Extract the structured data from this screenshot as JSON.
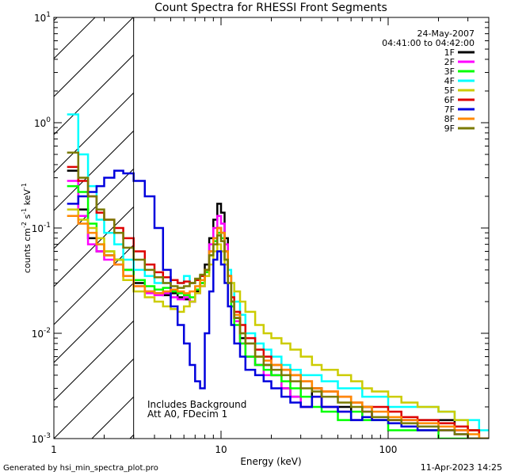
{
  "chart_data": {
    "type": "line",
    "title": "Count Spectra for RHESSI Front Segments",
    "xlabel": "Energy (keV)",
    "ylabel": "counts cm-2 s-1 keV-1",
    "ylabel_base": "counts cm",
    "ylabel_exp1": "-2",
    "ylabel_mid": " s",
    "ylabel_exp2": "-1",
    "ylabel_mid2": " keV",
    "ylabel_exp3": "-1",
    "xscale": "log",
    "yscale": "log",
    "xlim": [
      1,
      400
    ],
    "ylim": [
      0.001,
      10
    ],
    "x_ticks": [
      {
        "value": 1,
        "label": "1"
      },
      {
        "value": 10,
        "label": "10"
      },
      {
        "value": 100,
        "label": "100"
      }
    ],
    "y_ticks": [
      {
        "value": 10,
        "base": "10",
        "exp": "1"
      },
      {
        "value": 1,
        "base": "10",
        "exp": "0"
      },
      {
        "value": 0.1,
        "base": "10",
        "exp": "-1"
      },
      {
        "value": 0.01,
        "base": "10",
        "exp": "-2"
      },
      {
        "value": 0.001,
        "base": "10",
        "exp": "-3"
      }
    ],
    "date": "24-May-2007",
    "time_range": "04:41:00 to 04:42:00",
    "annotation_lines": [
      "Includes Background",
      "Att A0, FDecim 1"
    ],
    "hatched_region_max_energy": 3,
    "footer_left": "Generated by hsi_min_spectra_plot.pro",
    "footer_right": "11-Apr-2023 14:25",
    "series": [
      {
        "name": "1F",
        "color": "#000000",
        "type": "front",
        "x": [
          1.2,
          1.4,
          1.6,
          1.8,
          2.0,
          2.3,
          2.6,
          3.0,
          3.5,
          4.0,
          4.5,
          5.0,
          5.5,
          6.0,
          6.5,
          7.0,
          7.5,
          8.0,
          8.5,
          9.0,
          9.5,
          10.0,
          10.5,
          11.0,
          11.5,
          12.0,
          13.0,
          14.0,
          16.0,
          18.0,
          20.0,
          23.0,
          26.0,
          30.0,
          35.0,
          40.0,
          50.0,
          60.0,
          70.0,
          80.0,
          100.0,
          120.0,
          150.0,
          200.0,
          250.0,
          300.0,
          350.0
        ],
        "y": [
          0.35,
          0.15,
          0.08,
          0.06,
          0.055,
          0.05,
          0.04,
          0.03,
          0.025,
          0.024,
          0.023,
          0.024,
          0.022,
          0.021,
          0.02,
          0.025,
          0.03,
          0.045,
          0.08,
          0.12,
          0.17,
          0.14,
          0.08,
          0.035,
          0.02,
          0.014,
          0.009,
          0.006,
          0.005,
          0.005,
          0.004,
          0.003,
          0.0025,
          0.002,
          0.003,
          0.002,
          0.002,
          0.0015,
          0.002,
          0.0015,
          0.0015,
          0.0015,
          0.0015,
          0.0015,
          0.0012,
          0.0012,
          0.001
        ]
      },
      {
        "name": "2F",
        "color": "#ff00ff",
        "type": "front",
        "x": [
          1.2,
          1.4,
          1.6,
          1.8,
          2.0,
          2.3,
          2.6,
          3.0,
          3.5,
          4.0,
          4.5,
          5.0,
          5.5,
          6.0,
          6.5,
          7.0,
          7.5,
          8.0,
          8.5,
          9.0,
          9.5,
          10.0,
          10.5,
          11.0,
          11.5,
          12.0,
          13.0,
          14.0,
          16.0,
          18.0,
          20.0,
          23.0,
          26.0,
          30.0,
          35.0,
          40.0,
          50.0,
          60.0,
          70.0,
          80.0,
          100.0,
          120.0,
          150.0,
          200.0,
          250.0,
          300.0,
          350.0
        ],
        "y": [
          0.28,
          0.13,
          0.07,
          0.06,
          0.05,
          0.045,
          0.035,
          0.028,
          0.024,
          0.023,
          0.024,
          0.022,
          0.021,
          0.022,
          0.02,
          0.024,
          0.028,
          0.04,
          0.07,
          0.1,
          0.13,
          0.11,
          0.07,
          0.03,
          0.018,
          0.013,
          0.008,
          0.006,
          0.005,
          0.004,
          0.004,
          0.003,
          0.0025,
          0.002,
          0.0025,
          0.002,
          0.0018,
          0.0015,
          0.0018,
          0.0015,
          0.0015,
          0.0015,
          0.0012,
          0.0012,
          0.0012,
          0.001,
          0.001
        ]
      },
      {
        "name": "3F",
        "color": "#00ff00",
        "type": "front",
        "x": [
          1.2,
          1.4,
          1.6,
          1.8,
          2.0,
          2.3,
          2.6,
          3.0,
          3.5,
          4.0,
          4.5,
          5.0,
          5.5,
          6.0,
          6.5,
          7.0,
          7.5,
          8.0,
          8.5,
          9.0,
          9.5,
          10.0,
          10.5,
          11.0,
          11.5,
          12.0,
          13.0,
          14.0,
          16.0,
          18.0,
          20.0,
          23.0,
          26.0,
          30.0,
          35.0,
          40.0,
          50.0,
          60.0,
          70.0,
          80.0,
          100.0,
          120.0,
          150.0,
          200.0,
          250.0,
          300.0,
          350.0
        ],
        "y": [
          0.25,
          0.22,
          0.11,
          0.07,
          0.06,
          0.05,
          0.04,
          0.032,
          0.028,
          0.026,
          0.027,
          0.025,
          0.024,
          0.023,
          0.022,
          0.026,
          0.03,
          0.038,
          0.055,
          0.075,
          0.09,
          0.08,
          0.05,
          0.03,
          0.018,
          0.012,
          0.008,
          0.006,
          0.005,
          0.0045,
          0.004,
          0.0035,
          0.003,
          0.0025,
          0.002,
          0.0018,
          0.0015,
          0.0018,
          0.0015,
          0.0015,
          0.0012,
          0.0012,
          0.0012,
          0.001,
          0.001,
          0.001,
          0.001
        ]
      },
      {
        "name": "4F",
        "color": "#00ffff",
        "type": "front",
        "x": [
          1.2,
          1.4,
          1.6,
          1.8,
          2.0,
          2.3,
          2.6,
          3.0,
          3.5,
          4.0,
          4.5,
          5.0,
          5.5,
          6.0,
          6.5,
          7.0,
          7.5,
          8.0,
          8.5,
          9.0,
          9.5,
          10.0,
          10.5,
          11.0,
          11.5,
          12.0,
          13.0,
          14.0,
          16.0,
          18.0,
          20.0,
          23.0,
          26.0,
          30.0,
          35.0,
          40.0,
          50.0,
          60.0,
          70.0,
          80.0,
          100.0,
          120.0,
          150.0,
          200.0,
          250.0,
          300.0,
          350.0
        ],
        "y": [
          1.2,
          0.5,
          0.25,
          0.12,
          0.09,
          0.07,
          0.05,
          0.04,
          0.035,
          0.03,
          0.03,
          0.032,
          0.03,
          0.035,
          0.03,
          0.032,
          0.035,
          0.04,
          0.06,
          0.08,
          0.1,
          0.09,
          0.06,
          0.04,
          0.03,
          0.02,
          0.015,
          0.01,
          0.008,
          0.007,
          0.006,
          0.005,
          0.0045,
          0.004,
          0.004,
          0.0035,
          0.003,
          0.003,
          0.0025,
          0.0025,
          0.002,
          0.002,
          0.002,
          0.0018,
          0.0015,
          0.0015,
          0.0012
        ]
      },
      {
        "name": "5F",
        "color": "#cccc00",
        "type": "front",
        "x": [
          1.2,
          1.4,
          1.6,
          1.8,
          2.0,
          2.3,
          2.6,
          3.0,
          3.5,
          4.0,
          4.5,
          5.0,
          5.5,
          6.0,
          6.5,
          7.0,
          7.5,
          8.0,
          8.5,
          9.0,
          9.5,
          10.0,
          10.5,
          11.0,
          11.5,
          12.0,
          13.0,
          14.0,
          16.0,
          18.0,
          20.0,
          23.0,
          26.0,
          30.0,
          35.0,
          40.0,
          50.0,
          60.0,
          70.0,
          80.0,
          100.0,
          120.0,
          150.0,
          200.0,
          250.0,
          300.0,
          350.0
        ],
        "y": [
          0.15,
          0.12,
          0.1,
          0.08,
          0.06,
          0.05,
          0.032,
          0.025,
          0.022,
          0.02,
          0.018,
          0.017,
          0.016,
          0.018,
          0.02,
          0.024,
          0.028,
          0.035,
          0.045,
          0.06,
          0.07,
          0.06,
          0.045,
          0.035,
          0.03,
          0.025,
          0.02,
          0.016,
          0.012,
          0.01,
          0.009,
          0.008,
          0.007,
          0.006,
          0.005,
          0.0045,
          0.004,
          0.0035,
          0.003,
          0.0028,
          0.0025,
          0.0022,
          0.002,
          0.0018,
          0.0015,
          0.0012,
          0.001
        ]
      },
      {
        "name": "6F",
        "color": "#dd0000",
        "type": "front",
        "x": [
          1.2,
          1.4,
          1.6,
          1.8,
          2.0,
          2.3,
          2.6,
          3.0,
          3.5,
          4.0,
          4.5,
          5.0,
          5.5,
          6.0,
          6.5,
          7.0,
          7.5,
          8.0,
          8.5,
          9.0,
          9.5,
          10.0,
          10.5,
          11.0,
          11.5,
          12.0,
          13.0,
          14.0,
          16.0,
          18.0,
          20.0,
          23.0,
          26.0,
          30.0,
          35.0,
          40.0,
          50.0,
          60.0,
          70.0,
          80.0,
          100.0,
          120.0,
          150.0,
          200.0,
          250.0,
          300.0,
          350.0
        ],
        "y": [
          0.38,
          0.28,
          0.2,
          0.14,
          0.12,
          0.1,
          0.08,
          0.06,
          0.045,
          0.038,
          0.034,
          0.032,
          0.03,
          0.031,
          0.03,
          0.032,
          0.035,
          0.04,
          0.06,
          0.08,
          0.1,
          0.09,
          0.06,
          0.035,
          0.022,
          0.016,
          0.012,
          0.009,
          0.007,
          0.006,
          0.005,
          0.0045,
          0.004,
          0.0035,
          0.003,
          0.0028,
          0.0025,
          0.0022,
          0.002,
          0.002,
          0.0018,
          0.0016,
          0.0015,
          0.0014,
          0.0013,
          0.0012,
          0.001
        ]
      },
      {
        "name": "7F",
        "color": "#0000dd",
        "type": "front",
        "x": [
          1.2,
          1.4,
          1.6,
          1.8,
          2.0,
          2.3,
          2.6,
          3.0,
          3.5,
          4.0,
          4.5,
          5.0,
          5.5,
          6.0,
          6.5,
          7.0,
          7.5,
          8.0,
          8.5,
          9.0,
          9.5,
          10.0,
          10.5,
          11.0,
          11.5,
          12.0,
          13.0,
          14.0,
          16.0,
          18.0,
          20.0,
          23.0,
          26.0,
          30.0,
          35.0,
          40.0,
          50.0,
          60.0,
          70.0,
          80.0,
          100.0,
          120.0,
          150.0,
          200.0,
          250.0,
          300.0,
          350.0
        ],
        "y": [
          0.17,
          0.2,
          0.22,
          0.25,
          0.3,
          0.35,
          0.33,
          0.28,
          0.2,
          0.1,
          0.04,
          0.018,
          0.012,
          0.008,
          0.005,
          0.0035,
          0.003,
          0.01,
          0.025,
          0.05,
          0.06,
          0.045,
          0.03,
          0.018,
          0.012,
          0.008,
          0.006,
          0.0045,
          0.004,
          0.0035,
          0.003,
          0.0025,
          0.0022,
          0.002,
          0.0025,
          0.002,
          0.0018,
          0.0015,
          0.0016,
          0.0015,
          0.0014,
          0.0013,
          0.0012,
          0.0012,
          0.0011,
          0.001,
          0.001
        ]
      },
      {
        "name": "8F",
        "color": "#ff8800",
        "type": "front",
        "x": [
          1.2,
          1.4,
          1.6,
          1.8,
          2.0,
          2.3,
          2.6,
          3.0,
          3.5,
          4.0,
          4.5,
          5.0,
          5.5,
          6.0,
          6.5,
          7.0,
          7.5,
          8.0,
          8.5,
          9.0,
          9.5,
          10.0,
          10.5,
          11.0,
          11.5,
          12.0,
          13.0,
          14.0,
          16.0,
          18.0,
          20.0,
          23.0,
          26.0,
          30.0,
          35.0,
          40.0,
          50.0,
          60.0,
          70.0,
          80.0,
          100.0,
          120.0,
          150.0,
          200.0,
          250.0,
          300.0,
          350.0
        ],
        "y": [
          0.13,
          0.11,
          0.09,
          0.07,
          0.055,
          0.045,
          0.035,
          0.028,
          0.025,
          0.024,
          0.025,
          0.026,
          0.025,
          0.024,
          0.025,
          0.028,
          0.032,
          0.04,
          0.06,
          0.08,
          0.1,
          0.09,
          0.06,
          0.035,
          0.02,
          0.015,
          0.01,
          0.008,
          0.006,
          0.0055,
          0.005,
          0.0045,
          0.004,
          0.0035,
          0.003,
          0.0028,
          0.0025,
          0.0022,
          0.002,
          0.0018,
          0.0016,
          0.0015,
          0.0014,
          0.0013,
          0.0012,
          0.0011,
          0.001
        ]
      },
      {
        "name": "9F",
        "color": "#7a7a00",
        "type": "front",
        "x": [
          1.2,
          1.4,
          1.6,
          1.8,
          2.0,
          2.3,
          2.6,
          3.0,
          3.5,
          4.0,
          4.5,
          5.0,
          5.5,
          6.0,
          6.5,
          7.0,
          7.5,
          8.0,
          8.5,
          9.0,
          9.5,
          10.0,
          10.5,
          11.0,
          11.5,
          12.0,
          13.0,
          14.0,
          16.0,
          18.0,
          20.0,
          23.0,
          26.0,
          30.0,
          35.0,
          40.0,
          50.0,
          60.0,
          70.0,
          80.0,
          100.0,
          120.0,
          150.0,
          200.0,
          250.0,
          300.0,
          350.0
        ],
        "y": [
          0.52,
          0.3,
          0.2,
          0.15,
          0.12,
          0.09,
          0.065,
          0.05,
          0.04,
          0.034,
          0.03,
          0.028,
          0.027,
          0.028,
          0.03,
          0.033,
          0.036,
          0.04,
          0.055,
          0.07,
          0.085,
          0.075,
          0.05,
          0.03,
          0.02,
          0.014,
          0.01,
          0.008,
          0.006,
          0.005,
          0.0045,
          0.004,
          0.0035,
          0.003,
          0.0028,
          0.0025,
          0.0022,
          0.002,
          0.0018,
          0.0016,
          0.0015,
          0.0014,
          0.0013,
          0.0012,
          0.0011,
          0.001,
          0.001
        ]
      }
    ]
  }
}
